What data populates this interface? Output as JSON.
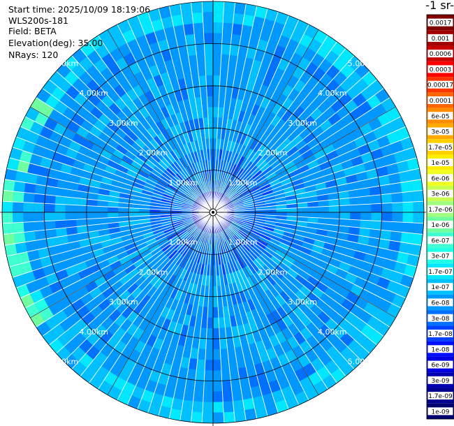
{
  "header": {
    "start_time": "Start time: 2025/10/09 18:19:06",
    "instrument": "WLS200s-181",
    "field": "Field: BETA",
    "elevation": "Elevation(deg): 35.00",
    "nrays": "NRays: 120"
  },
  "colorbar": {
    "unit_label": "-1 sr-",
    "ticks": [
      "0.0017",
      "0.001",
      "0.0006",
      "0.0003",
      "0.00017",
      "0.0001",
      "6e-05",
      "3e-05",
      "1.7e-05",
      "1e-05",
      "6e-06",
      "3e-06",
      "1.7e-06",
      "1e-06",
      "6e-07",
      "3e-07",
      "1.7e-07",
      "1e-07",
      "6e-08",
      "3e-08",
      "1.7e-08",
      "1e-08",
      "6e-09",
      "3e-09",
      "1.7e-09",
      "1e-09"
    ],
    "colors": [
      "#7f0000",
      "#a00000",
      "#c80000",
      "#ff0000",
      "#ff3300",
      "#ff6600",
      "#ff8c00",
      "#ffaa00",
      "#ffd000",
      "#ffee00",
      "#f0ff20",
      "#c8ff50",
      "#a0ff80",
      "#70ffa0",
      "#40ffd0",
      "#20ffe8",
      "#00e8ff",
      "#00c0ff",
      "#0098ff",
      "#0070ff",
      "#0040ff",
      "#0010ff",
      "#0000e0",
      "#0000b0",
      "#000090",
      "#000070"
    ]
  },
  "chart_data": {
    "type": "ppi",
    "field": "BETA",
    "elevation_deg": 35.0,
    "n_rays": 120,
    "range_max_km": 5.0,
    "range_rings_km": [
      1.0,
      2.0,
      3.0,
      4.0,
      5.0
    ],
    "range_labels": [
      "1.00km",
      "2.00km",
      "3.00km",
      "4.00km",
      "5.00km"
    ],
    "spoke_step_deg": 30,
    "background_level": "6e-08",
    "profiles": [
      {
        "range_km": 0.0,
        "value": "1e-08"
      },
      {
        "range_km": 0.5,
        "value": "3e-08"
      },
      {
        "range_km": 1.0,
        "value": "3e-08"
      },
      {
        "range_km": 1.5,
        "value": "6e-08"
      },
      {
        "range_km": 2.0,
        "value": "6e-08"
      },
      {
        "range_km": 3.0,
        "value": "6e-08"
      },
      {
        "range_km": 4.0,
        "value": "6e-08"
      },
      {
        "range_km": 4.5,
        "value": "1e-07"
      },
      {
        "range_km": 5.0,
        "value": "1.7e-07"
      }
    ]
  }
}
